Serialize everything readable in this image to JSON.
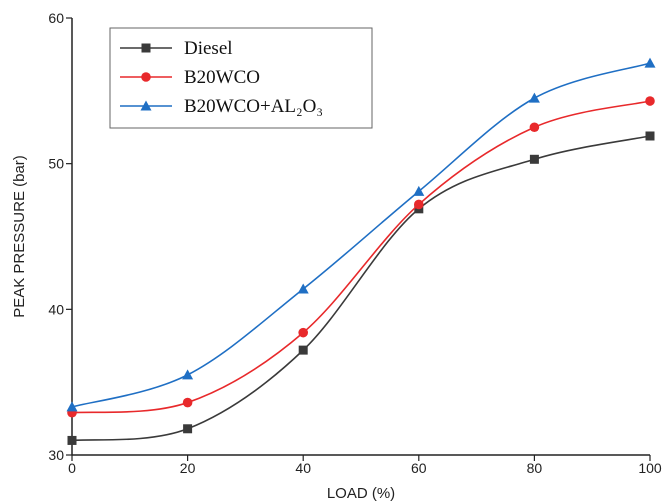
{
  "chart_data": {
    "type": "line",
    "xlabel": "LOAD (%)",
    "ylabel": "PEAK PRESSURE (bar)",
    "xlim": [
      0,
      100
    ],
    "ylim": [
      30,
      60
    ],
    "x_ticks": [
      0,
      20,
      40,
      60,
      80,
      100
    ],
    "y_ticks": [
      30,
      40,
      50,
      60
    ],
    "grid": false,
    "legend_position": "top-left",
    "series": [
      {
        "name": "Diesel",
        "marker": "square",
        "color": "#3a3a3a",
        "x": [
          0,
          20,
          40,
          60,
          80,
          100
        ],
        "y": [
          31.0,
          31.8,
          37.2,
          46.9,
          50.3,
          51.9
        ]
      },
      {
        "name": "B20WCO",
        "marker": "circle",
        "color": "#e8292b",
        "x": [
          0,
          20,
          40,
          60,
          80,
          100
        ],
        "y": [
          32.9,
          33.6,
          38.4,
          47.2,
          52.5,
          54.3
        ]
      },
      {
        "name": "B20WCO+AL₂O₃",
        "marker": "triangle",
        "color": "#1f6fc4",
        "x": [
          0,
          20,
          40,
          60,
          80,
          100
        ],
        "y": [
          33.3,
          35.5,
          41.4,
          48.1,
          54.5,
          56.9
        ]
      }
    ]
  }
}
